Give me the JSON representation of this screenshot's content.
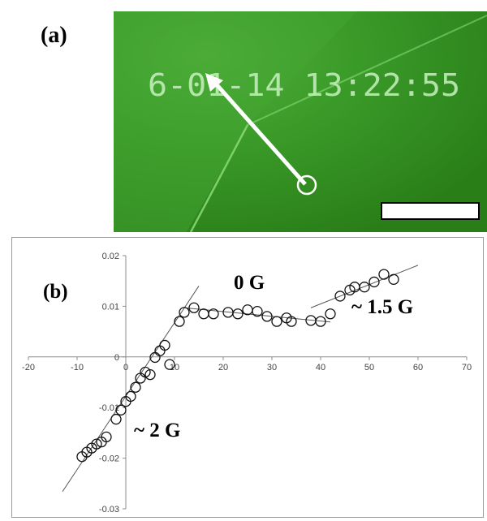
{
  "panel_a": {
    "label": "(a)",
    "timestamp": "6-01-14 13:22:55",
    "colors": {
      "background": "#2f8f1f",
      "overlay_text": "#c8f2c0",
      "arrow": "#ffffff"
    }
  },
  "chart_data": {
    "type": "scatter",
    "panel_label": "(b)",
    "xlim": [
      -20,
      70
    ],
    "ylim": [
      -0.03,
      0.02
    ],
    "x_ticks": [
      -20,
      -10,
      0,
      10,
      20,
      30,
      40,
      50,
      60,
      70
    ],
    "y_ticks": [
      {
        "value": 0.02,
        "label": "0.02"
      },
      {
        "value": 0.01,
        "label": "0.01"
      },
      {
        "value": 0,
        "label": "0"
      },
      {
        "value": -0.01,
        "label": "-0.01"
      },
      {
        "value": -0.02,
        "label": "-0.02"
      },
      {
        "value": -0.03,
        "label": "-0.03"
      }
    ],
    "grid": false,
    "marker": "open-circle",
    "points": [
      {
        "x": -9,
        "y": -0.0197
      },
      {
        "x": -8,
        "y": -0.0188
      },
      {
        "x": -7,
        "y": -0.018
      },
      {
        "x": -6,
        "y": -0.0172
      },
      {
        "x": -5,
        "y": -0.0168
      },
      {
        "x": -4,
        "y": -0.0158
      },
      {
        "x": -2,
        "y": -0.0123
      },
      {
        "x": -1,
        "y": -0.0105
      },
      {
        "x": 0,
        "y": -0.0088
      },
      {
        "x": 1,
        "y": -0.0078
      },
      {
        "x": 2,
        "y": -0.006
      },
      {
        "x": 3,
        "y": -0.0042
      },
      {
        "x": 4,
        "y": -0.003
      },
      {
        "x": 5,
        "y": -0.0035
      },
      {
        "x": 6,
        "y": -0.0001
      },
      {
        "x": 7,
        "y": 0.0012
      },
      {
        "x": 8,
        "y": 0.0023
      },
      {
        "x": 9,
        "y": -0.0015
      },
      {
        "x": 11,
        "y": 0.007
      },
      {
        "x": 12,
        "y": 0.0088
      },
      {
        "x": 14,
        "y": 0.0097
      },
      {
        "x": 16,
        "y": 0.0085
      },
      {
        "x": 18,
        "y": 0.0085
      },
      {
        "x": 21,
        "y": 0.0088
      },
      {
        "x": 23,
        "y": 0.0085
      },
      {
        "x": 25,
        "y": 0.0093
      },
      {
        "x": 27,
        "y": 0.009
      },
      {
        "x": 29,
        "y": 0.008
      },
      {
        "x": 31,
        "y": 0.007
      },
      {
        "x": 33,
        "y": 0.0077
      },
      {
        "x": 34,
        "y": 0.007
      },
      {
        "x": 38,
        "y": 0.0072
      },
      {
        "x": 40,
        "y": 0.007
      },
      {
        "x": 42,
        "y": 0.0085
      },
      {
        "x": 44,
        "y": 0.012
      },
      {
        "x": 46,
        "y": 0.0132
      },
      {
        "x": 47,
        "y": 0.0138
      },
      {
        "x": 49,
        "y": 0.0138
      },
      {
        "x": 51,
        "y": 0.0148
      },
      {
        "x": 53,
        "y": 0.0163
      },
      {
        "x": 55,
        "y": 0.0153
      }
    ],
    "fit_lines": [
      {
        "name": "~ 2 G",
        "x": [
          -13,
          15
        ],
        "y": [
          -0.0266,
          0.014
        ]
      },
      {
        "name": "0 G",
        "x": [
          12,
          42
        ],
        "y": [
          0.0097,
          0.0069
        ]
      },
      {
        "name": "~ 1.5 G",
        "x": [
          38,
          60
        ],
        "y": [
          0.0097,
          0.0181
        ]
      }
    ],
    "annotations": [
      {
        "text": "0 G"
      },
      {
        "text": "~ 1.5 G"
      },
      {
        "text": "~ 2 G"
      }
    ]
  }
}
